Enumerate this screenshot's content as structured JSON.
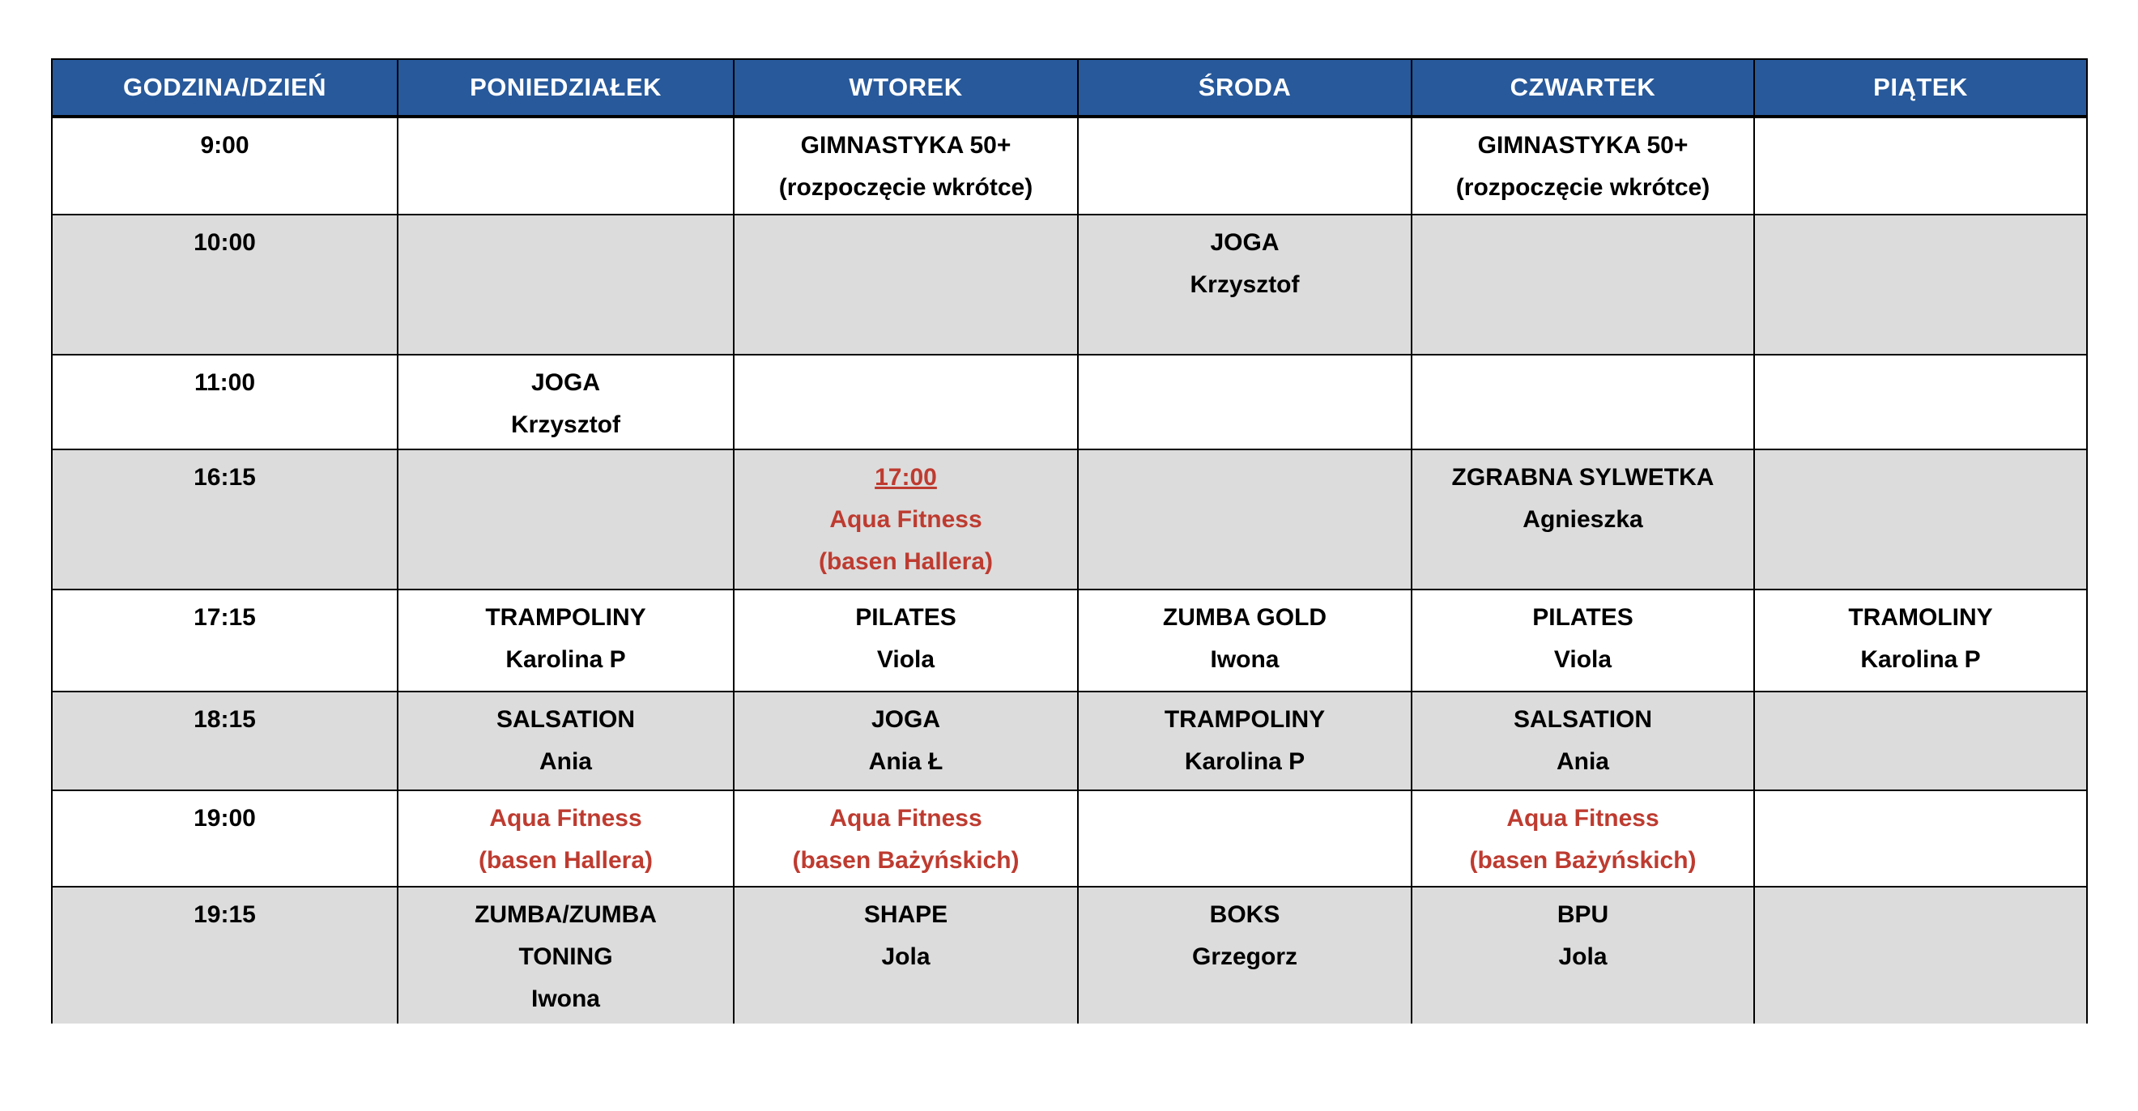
{
  "colors": {
    "header_bg": "#27599B",
    "header_text": "#ffffff",
    "row_shaded_bg": "#DCDCDC",
    "row_plain_bg": "#ffffff",
    "accent_red": "#BE3B30",
    "border": "#000000",
    "text": "#000000"
  },
  "schedule": {
    "headers": [
      "GODZINA/DZIEŃ",
      "PONIEDZIAŁEK",
      "WTOREK",
      "ŚRODA",
      "CZWARTEK",
      "PIĄTEK"
    ],
    "rows": [
      {
        "time": "9:00",
        "shaded": false,
        "cells": [
          {
            "lines": []
          },
          {
            "lines": [
              "GIMNASTYKA 50+",
              "(rozpoczęcie wkrótce)"
            ]
          },
          {
            "lines": []
          },
          {
            "lines": [
              "GIMNASTYKA 50+",
              "(rozpoczęcie wkrótce)"
            ]
          },
          {
            "lines": []
          }
        ]
      },
      {
        "time": "10:00",
        "shaded": true,
        "cells": [
          {
            "lines": []
          },
          {
            "lines": []
          },
          {
            "lines": [
              "JOGA",
              "Krzysztof"
            ]
          },
          {
            "lines": []
          },
          {
            "lines": []
          }
        ]
      },
      {
        "time": "11:00",
        "shaded": false,
        "cells": [
          {
            "lines": [
              "JOGA",
              "Krzysztof"
            ]
          },
          {
            "lines": []
          },
          {
            "lines": []
          },
          {
            "lines": []
          },
          {
            "lines": []
          }
        ]
      },
      {
        "time": "16:15",
        "shaded": true,
        "cells": [
          {
            "lines": []
          },
          {
            "lines": [
              "17:00",
              "Aqua Fitness",
              "(basen Hallera)"
            ],
            "red": true,
            "underline_first": true
          },
          {
            "lines": []
          },
          {
            "lines": [
              "ZGRABNA SYLWETKA",
              "Agnieszka"
            ]
          },
          {
            "lines": []
          }
        ]
      },
      {
        "time": "17:15",
        "shaded": false,
        "cells": [
          {
            "lines": [
              "TRAMPOLINY",
              "Karolina P"
            ]
          },
          {
            "lines": [
              "PILATES",
              "Viola"
            ]
          },
          {
            "lines": [
              "ZUMBA GOLD",
              "Iwona"
            ]
          },
          {
            "lines": [
              "PILATES",
              "Viola"
            ]
          },
          {
            "lines": [
              "TRAMOLINY",
              "Karolina P"
            ]
          }
        ]
      },
      {
        "time": "18:15",
        "shaded": true,
        "cells": [
          {
            "lines": [
              "SALSATION",
              "Ania"
            ]
          },
          {
            "lines": [
              "JOGA",
              "Ania Ł"
            ]
          },
          {
            "lines": [
              "TRAMPOLINY",
              "Karolina P"
            ]
          },
          {
            "lines": [
              "SALSATION",
              "Ania"
            ]
          },
          {
            "lines": []
          }
        ]
      },
      {
        "time": "19:00",
        "shaded": false,
        "cells": [
          {
            "lines": [
              "Aqua Fitness",
              "(basen Hallera)"
            ],
            "red": true
          },
          {
            "lines": [
              "Aqua Fitness",
              "(basen Bażyńskich)"
            ],
            "red": true
          },
          {
            "lines": []
          },
          {
            "lines": [
              "Aqua Fitness",
              "(basen Bażyńskich)"
            ],
            "red": true
          },
          {
            "lines": []
          }
        ]
      },
      {
        "time": "19:15",
        "shaded": true,
        "cells": [
          {
            "lines": [
              "ZUMBA/ZUMBA",
              "TONING",
              "Iwona"
            ]
          },
          {
            "lines": [
              "SHAPE",
              "Jola"
            ]
          },
          {
            "lines": [
              "BOKS",
              "Grzegorz"
            ]
          },
          {
            "lines": [
              "BPU",
              "Jola"
            ]
          },
          {
            "lines": []
          }
        ]
      }
    ]
  }
}
